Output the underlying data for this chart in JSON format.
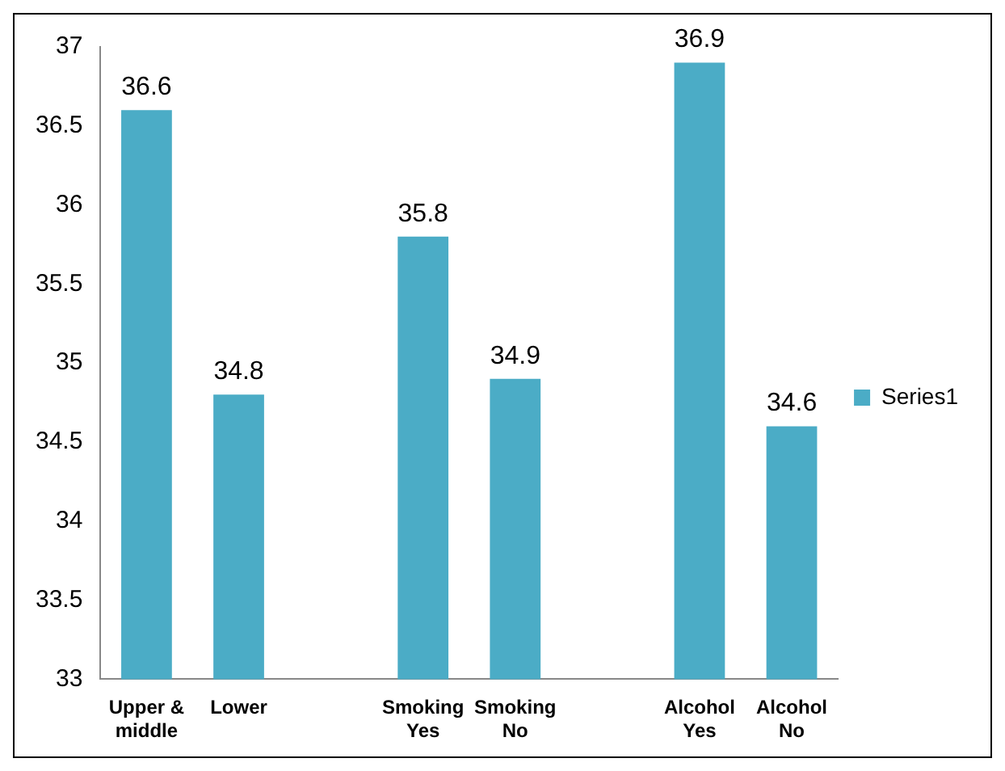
{
  "chart_data": {
    "type": "bar",
    "categories": [
      "Upper & middle",
      "Lower",
      null,
      "Smoking Yes",
      "Smoking No",
      null,
      "Alcohol Yes",
      "Alcohol No"
    ],
    "series": [
      {
        "name": "Series1",
        "color": "#4bacc6",
        "values": [
          36.6,
          34.8,
          null,
          35.8,
          34.9,
          null,
          36.9,
          34.6
        ]
      }
    ],
    "ylim": [
      33,
      37
    ],
    "yticks": [
      33,
      33.5,
      34,
      34.5,
      35,
      35.5,
      36,
      36.5,
      37
    ],
    "grid": false,
    "legend": "right",
    "data_labels": true
  }
}
